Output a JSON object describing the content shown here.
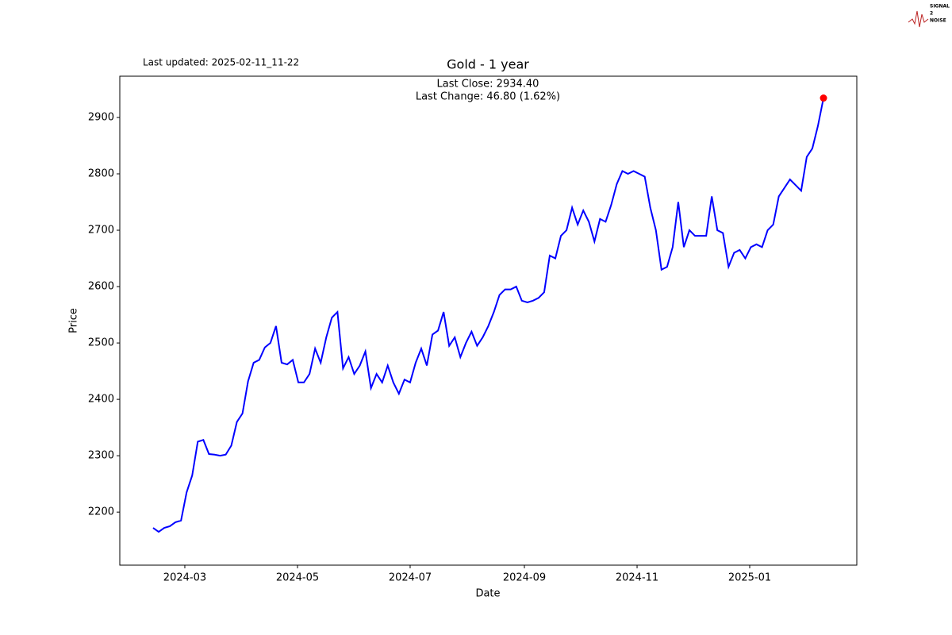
{
  "chart_data": {
    "type": "line",
    "title": "Gold - 1 year",
    "subtitle": "Last updated: 2025-02-11_11-22",
    "annotations": [
      "Last Close: 2934.40",
      "Last Change: 46.80 (1.62%)"
    ],
    "xlabel": "Date",
    "ylabel": "Price",
    "logo": [
      "SIGNAL",
      "2",
      "NOISE"
    ],
    "color": "#0000ff",
    "last_point_color": "#ff0000",
    "values": [
      2172,
      2165,
      2172,
      2175,
      2182,
      2185,
      2235,
      2265,
      2325,
      2328,
      2303,
      2302,
      2300,
      2302,
      2318,
      2360,
      2375,
      2432,
      2465,
      2470,
      2492,
      2500,
      2530,
      2465,
      2462,
      2470,
      2430,
      2430,
      2445,
      2490,
      2465,
      2510,
      2545,
      2555,
      2455,
      2475,
      2445,
      2460,
      2485,
      2420,
      2445,
      2430,
      2460,
      2430,
      2410,
      2435,
      2430,
      2465,
      2490,
      2460,
      2515,
      2522,
      2555,
      2495,
      2510,
      2475,
      2500,
      2520,
      2495,
      2510,
      2530,
      2555,
      2585,
      2595,
      2595,
      2600,
      2575,
      2572,
      2575,
      2580,
      2590,
      2655,
      2650,
      2690,
      2700,
      2740,
      2710,
      2735,
      2715,
      2680,
      2720,
      2715,
      2745,
      2782,
      2805,
      2800,
      2805,
      2800,
      2795,
      2740,
      2700,
      2630,
      2635,
      2670,
      2750,
      2670,
      2700,
      2690,
      2690,
      2690,
      2760,
      2700,
      2695,
      2635,
      2660,
      2665,
      2650,
      2670,
      2675,
      2670,
      2700,
      2710,
      2760,
      2775,
      2790,
      2780,
      2770,
      2830,
      2845,
      2885,
      2934.4
    ],
    "xlim": [
      -5.96,
      125.96
    ],
    "xticks": [
      {
        "value": 5.68,
        "label": "2024-03"
      },
      {
        "value": 25.85,
        "label": "2024-05"
      },
      {
        "value": 46.01,
        "label": "2024-07"
      },
      {
        "value": 66.46,
        "label": "2024-09"
      },
      {
        "value": 86.63,
        "label": "2024-11"
      },
      {
        "value": 106.79,
        "label": "2025-01"
      }
    ],
    "ylim": [
      2105.9,
      2973.2
    ],
    "yticks": [
      2200,
      2300,
      2400,
      2500,
      2600,
      2700,
      2800,
      2900
    ]
  }
}
